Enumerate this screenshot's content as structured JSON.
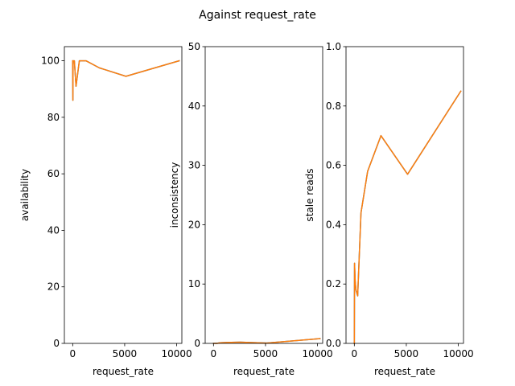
{
  "figure": {
    "suptitle": "Against request_rate"
  },
  "chart_data": [
    {
      "type": "line",
      "xlabel": "request_rate",
      "ylabel": "availability",
      "xlim": [
        -800,
        10500
      ],
      "ylim": [
        0,
        105
      ],
      "xticks": [
        0,
        5000,
        10000
      ],
      "yticks": [
        0,
        20,
        40,
        60,
        80,
        100
      ],
      "grid": false,
      "series": [
        {
          "color": "#1f77b4",
          "x": [
            0,
            20,
            40,
            80,
            160,
            320,
            640,
            1280,
            2560,
            5120,
            10240
          ],
          "y": [
            100,
            86,
            100,
            100,
            100,
            91,
            100,
            100,
            97.5,
            94.5,
            100
          ]
        },
        {
          "color": "#ff7f0e",
          "x": [
            0,
            20,
            40,
            80,
            160,
            320,
            640,
            1280,
            2560,
            5120,
            10240
          ],
          "y": [
            100,
            86,
            100,
            100,
            100,
            91,
            100,
            100,
            97.5,
            94.5,
            100
          ]
        }
      ]
    },
    {
      "type": "line",
      "xlabel": "request_rate",
      "ylabel": "inconsistency",
      "xlim": [
        -800,
        10500
      ],
      "ylim": [
        0,
        50
      ],
      "xticks": [
        0,
        5000,
        10000
      ],
      "yticks": [
        0,
        10,
        20,
        30,
        40,
        50
      ],
      "grid": false,
      "series": [
        {
          "color": "#1f77b4",
          "x": [
            0,
            20,
            40,
            80,
            160,
            320,
            640,
            1280,
            2560,
            5120,
            10240
          ],
          "y": [
            0,
            0,
            0,
            0,
            0,
            0,
            0.1,
            0.15,
            0.2,
            0.05,
            0.8
          ]
        },
        {
          "color": "#ff7f0e",
          "x": [
            0,
            20,
            40,
            80,
            160,
            320,
            640,
            1280,
            2560,
            5120,
            10240
          ],
          "y": [
            0,
            0,
            0,
            0,
            0,
            0,
            0.1,
            0.15,
            0.2,
            0.05,
            0.8
          ]
        }
      ]
    },
    {
      "type": "line",
      "xlabel": "request_rate",
      "ylabel": "stale reads",
      "xlim": [
        -800,
        10500
      ],
      "ylim": [
        0,
        1.0
      ],
      "xticks": [
        0,
        5000,
        10000
      ],
      "yticks": [
        0.0,
        0.2,
        0.4,
        0.6,
        0.8,
        1.0
      ],
      "grid": false,
      "series": [
        {
          "color": "#1f77b4",
          "x": [
            0,
            20,
            40,
            80,
            160,
            320,
            640,
            1280,
            2560,
            5120,
            10240
          ],
          "y": [
            0,
            0.27,
            0.25,
            0.21,
            0.18,
            0.16,
            0.44,
            0.58,
            0.7,
            0.57,
            0.85
          ]
        },
        {
          "color": "#ff7f0e",
          "x": [
            0,
            20,
            40,
            80,
            160,
            320,
            640,
            1280,
            2560,
            5120,
            10240
          ],
          "y": [
            0,
            0.27,
            0.25,
            0.21,
            0.18,
            0.16,
            0.44,
            0.58,
            0.7,
            0.57,
            0.85
          ]
        }
      ]
    }
  ]
}
